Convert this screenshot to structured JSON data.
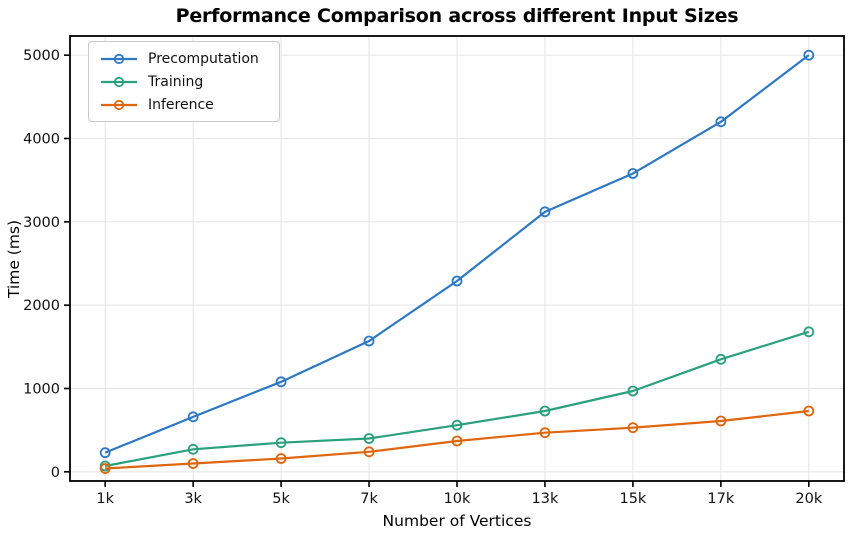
{
  "chart_data": {
    "type": "line",
    "title": "Performance Comparison across different Input Sizes",
    "xlabel": "Number of Vertices",
    "ylabel": "Time (ms)",
    "categories": [
      "1k",
      "3k",
      "5k",
      "7k",
      "10k",
      "13k",
      "15k",
      "17k",
      "20k"
    ],
    "series": [
      {
        "name": "Precomputation",
        "color": "#2d78c5",
        "values": [
          230,
          660,
          1080,
          1570,
          2290,
          3120,
          3580,
          4200,
          5000
        ]
      },
      {
        "name": "Training",
        "color": "#2aa17c",
        "values": [
          70,
          270,
          350,
          400,
          560,
          730,
          970,
          1350,
          1680
        ]
      },
      {
        "name": "Inference",
        "color": "#e1650d",
        "values": [
          40,
          100,
          160,
          240,
          370,
          470,
          530,
          610,
          730
        ]
      }
    ],
    "yticks": [
      0,
      1000,
      2000,
      3000,
      4000,
      5000
    ],
    "ylim": [
      -110,
      5230
    ],
    "grid": true,
    "legend_position": "upper-left",
    "marker": "open-circle"
  }
}
